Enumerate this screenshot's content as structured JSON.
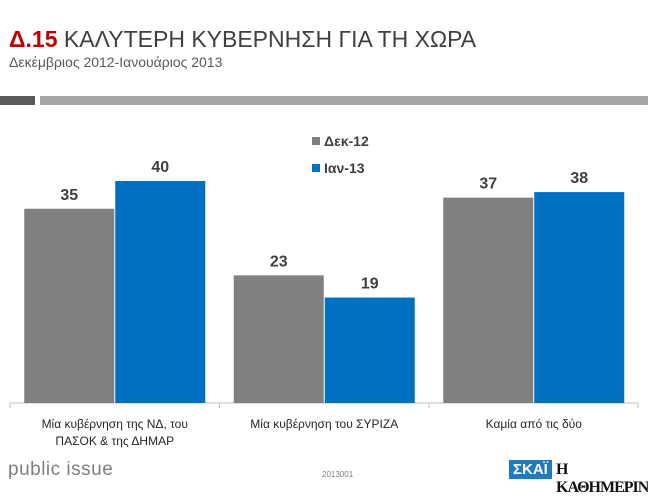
{
  "header": {
    "code": "Δ.15",
    "title": "ΚΑΛΥΤΕΡΗ ΚΥΒΕΡΝΗΣΗ ΓΙΑ ΤΗ ΧΩΡΑ",
    "subtitle": "Δεκέμβριος 2012-Ιανουάριος 2013"
  },
  "footer": {
    "brand": "public issue",
    "code": "2013001",
    "logo1": "ΣΚΑΪ",
    "logo2": "Η ΚΑΘΗΜΕΡΙΝΗ"
  },
  "chart_data": {
    "type": "bar",
    "title": "ΚΑΛΥΤΕΡΗ ΚΥΒΕΡΝΗΣΗ ΓΙΑ ΤΗ ΧΩΡΑ",
    "categories": [
      [
        "Μία κυβέρνηση της ΝΔ, του",
        "ΠΑΣΟΚ & της ΔΗΜΑΡ"
      ],
      [
        "Μία κυβέρνηση του ΣΥΡΙΖΑ"
      ],
      [
        "Καμία από τις δύο"
      ]
    ],
    "series": [
      {
        "name": "Δεκ-12",
        "color": "#808080",
        "values": [
          35,
          23,
          37
        ]
      },
      {
        "name": "Ιαν-13",
        "color": "#0070c0",
        "values": [
          40,
          19,
          38
        ]
      }
    ],
    "ylim": [
      0,
      40
    ],
    "legend": "top-center",
    "grid": false
  }
}
